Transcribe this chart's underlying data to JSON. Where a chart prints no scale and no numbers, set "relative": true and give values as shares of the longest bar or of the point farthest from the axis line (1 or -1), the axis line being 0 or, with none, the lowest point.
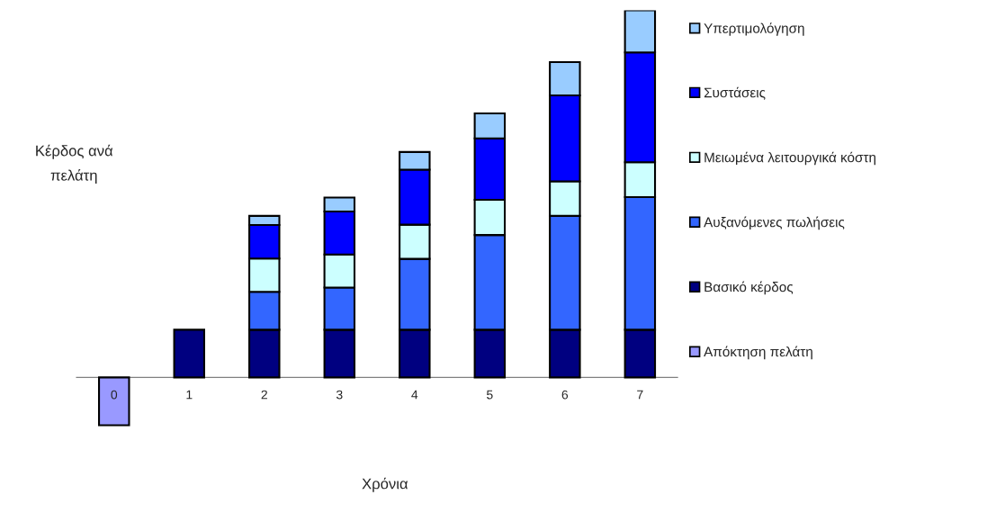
{
  "chart_data": {
    "type": "bar",
    "stacked": true,
    "relative": true,
    "xlabel": "Χρόνια",
    "ylabel": "Κέρδος ανά\nπελάτη",
    "categories": [
      "0",
      "1",
      "2",
      "3",
      "4",
      "5",
      "6",
      "7"
    ],
    "series": [
      {
        "name": "Απόκτηση πελάτη",
        "color": "#9999ff",
        "values": [
          -0.13,
          null,
          null,
          null,
          null,
          null,
          null,
          null
        ]
      },
      {
        "name": "Βασικό κέρδος",
        "color": "#000080",
        "values": [
          null,
          0.13,
          0.13,
          0.13,
          0.13,
          0.13,
          0.13,
          0.13
        ]
      },
      {
        "name": "Αυξανόμενες πωλήσεις",
        "color": "#3366ff",
        "values": [
          null,
          null,
          0.103,
          0.115,
          0.193,
          0.258,
          0.31,
          0.361
        ]
      },
      {
        "name": "Μειωμένα λειτουργικά κόστη",
        "color": "#ccffff",
        "values": [
          null,
          null,
          0.091,
          0.09,
          0.093,
          0.096,
          0.094,
          0.095
        ]
      },
      {
        "name": "Συστάσεις",
        "color": "#0000ff",
        "values": [
          null,
          null,
          0.091,
          0.117,
          0.15,
          0.167,
          0.234,
          0.299
        ]
      },
      {
        "name": "Υπερτιμολόγηση",
        "color": "#99ccff",
        "values": [
          null,
          null,
          0.025,
          0.038,
          0.048,
          0.068,
          0.091,
          0.115
        ]
      }
    ],
    "legend": "right"
  }
}
